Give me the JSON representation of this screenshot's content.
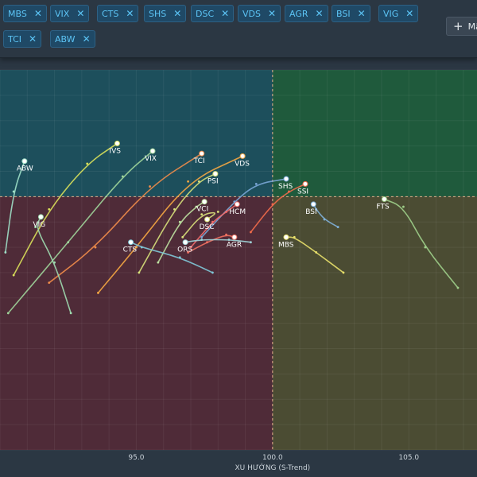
{
  "toolbar": {
    "chips": [
      "MBS",
      "VIX",
      "CTS",
      "SHS",
      "DSC",
      "VDS",
      "AGR",
      "BSI",
      "VIG",
      "TCI",
      "ABW"
    ],
    "remove_icon": "close-icon",
    "add_button_label": "Mã"
  },
  "chart_data": {
    "type": "scatter",
    "title": "",
    "xlabel": "XU HƯỚNG (S-Trend)",
    "ylabel": "",
    "xlim": [
      90.0,
      107.5
    ],
    "ylim": [
      90.0,
      105.0
    ],
    "x_ticks": [
      "95.0",
      "100.0",
      "105.0"
    ],
    "center": [
      100.0,
      100.0
    ],
    "quadrant_colors": {
      "top_left": "#1d4f5c",
      "top_right": "#1f5a3c",
      "bottom_left": "#4f2b38",
      "bottom_right": "#4b4c33"
    },
    "grid": true,
    "series": [
      {
        "name": "ABW",
        "color": "#9fe0c8",
        "x": [
          90.2,
          90.5,
          90.9
        ],
        "y": [
          97.8,
          100.2,
          101.4
        ],
        "label": "ABW"
      },
      {
        "name": "IVS",
        "color": "#d9e05a",
        "x": [
          90.5,
          91.8,
          93.2,
          94.3
        ],
        "y": [
          96.9,
          99.5,
          101.3,
          102.1
        ],
        "label": "IVS"
      },
      {
        "name": "VIX",
        "color": "#9fd49a",
        "x": [
          90.3,
          92.5,
          94.5,
          95.6
        ],
        "y": [
          95.4,
          98.2,
          100.8,
          101.8
        ],
        "label": "VIX"
      },
      {
        "name": "TCI",
        "color": "#f08c4a",
        "x": [
          91.8,
          93.5,
          95.5,
          97.4
        ],
        "y": [
          96.6,
          98.0,
          100.4,
          101.7
        ],
        "label": "TCI"
      },
      {
        "name": "VDS",
        "color": "#f5a742",
        "x": [
          93.6,
          95.0,
          96.9,
          98.9
        ],
        "y": [
          96.2,
          98.0,
          100.6,
          101.6
        ],
        "label": "VDS"
      },
      {
        "name": "PSI",
        "color": "#d6e07a",
        "x": [
          95.1,
          96.4,
          97.3,
          97.9
        ],
        "y": [
          97.0,
          99.5,
          100.6,
          100.9
        ],
        "label": "PSI"
      },
      {
        "name": "SHS",
        "color": "#7aa6d6",
        "x": [
          97.4,
          98.6,
          99.4,
          100.5
        ],
        "y": [
          98.4,
          99.8,
          100.5,
          100.7
        ],
        "label": "SHS"
      },
      {
        "name": "SSI",
        "color": "#f06a4a",
        "x": [
          99.2,
          100.0,
          100.6,
          101.2
        ],
        "y": [
          98.6,
          99.7,
          100.2,
          100.5
        ],
        "label": "SSI"
      },
      {
        "name": "VCI",
        "color": "#bce0a0",
        "x": [
          95.8,
          96.6,
          97.2,
          97.5
        ],
        "y": [
          97.4,
          99.0,
          99.6,
          99.8
        ],
        "label": "VCI"
      },
      {
        "name": "HCM",
        "color": "#f06a6a",
        "x": [
          97.0,
          97.8,
          98.3,
          98.7
        ],
        "y": [
          98.0,
          99.0,
          99.4,
          99.7
        ],
        "label": "HCM"
      },
      {
        "name": "DSC",
        "color": "#d8e07a",
        "x": [
          96.7,
          97.4,
          98.0,
          97.6
        ],
        "y": [
          98.4,
          99.3,
          99.4,
          99.1
        ],
        "label": "DSC"
      },
      {
        "name": "VIG",
        "color": "#9fdcb0",
        "x": [
          92.6,
          92.0,
          91.3,
          91.5
        ],
        "y": [
          95.4,
          97.4,
          98.8,
          99.2
        ],
        "label": "VIG"
      },
      {
        "name": "AGR",
        "color": "#f07060",
        "x": [
          96.9,
          97.6,
          98.3,
          98.6
        ],
        "y": [
          97.8,
          98.2,
          98.5,
          98.4
        ],
        "label": "AGR"
      },
      {
        "name": "BSI",
        "color": "#7fb0d8",
        "x": [
          102.4,
          101.9,
          101.6,
          101.5
        ],
        "y": [
          98.8,
          99.1,
          99.5,
          99.7
        ],
        "label": "BSI"
      },
      {
        "name": "MBS",
        "color": "#e8e06a",
        "x": [
          102.6,
          101.6,
          100.8,
          100.5
        ],
        "y": [
          97.0,
          97.8,
          98.4,
          98.4
        ],
        "label": "MBS"
      },
      {
        "name": "FTS",
        "color": "#9fcf8a",
        "x": [
          106.8,
          105.6,
          104.8,
          104.1
        ],
        "y": [
          96.4,
          98.0,
          99.6,
          99.9
        ],
        "label": "FTS"
      },
      {
        "name": "CTS",
        "color": "#7fc8d8",
        "x": [
          97.8,
          96.6,
          95.2,
          94.8
        ],
        "y": [
          97.0,
          97.6,
          98.0,
          98.2
        ],
        "label": "CTS"
      },
      {
        "name": "ORS",
        "color": "#9fd4d8",
        "x": [
          99.2,
          98.4,
          97.4,
          96.8
        ],
        "y": [
          98.2,
          98.3,
          98.3,
          98.2
        ],
        "label": "ORS"
      }
    ]
  }
}
